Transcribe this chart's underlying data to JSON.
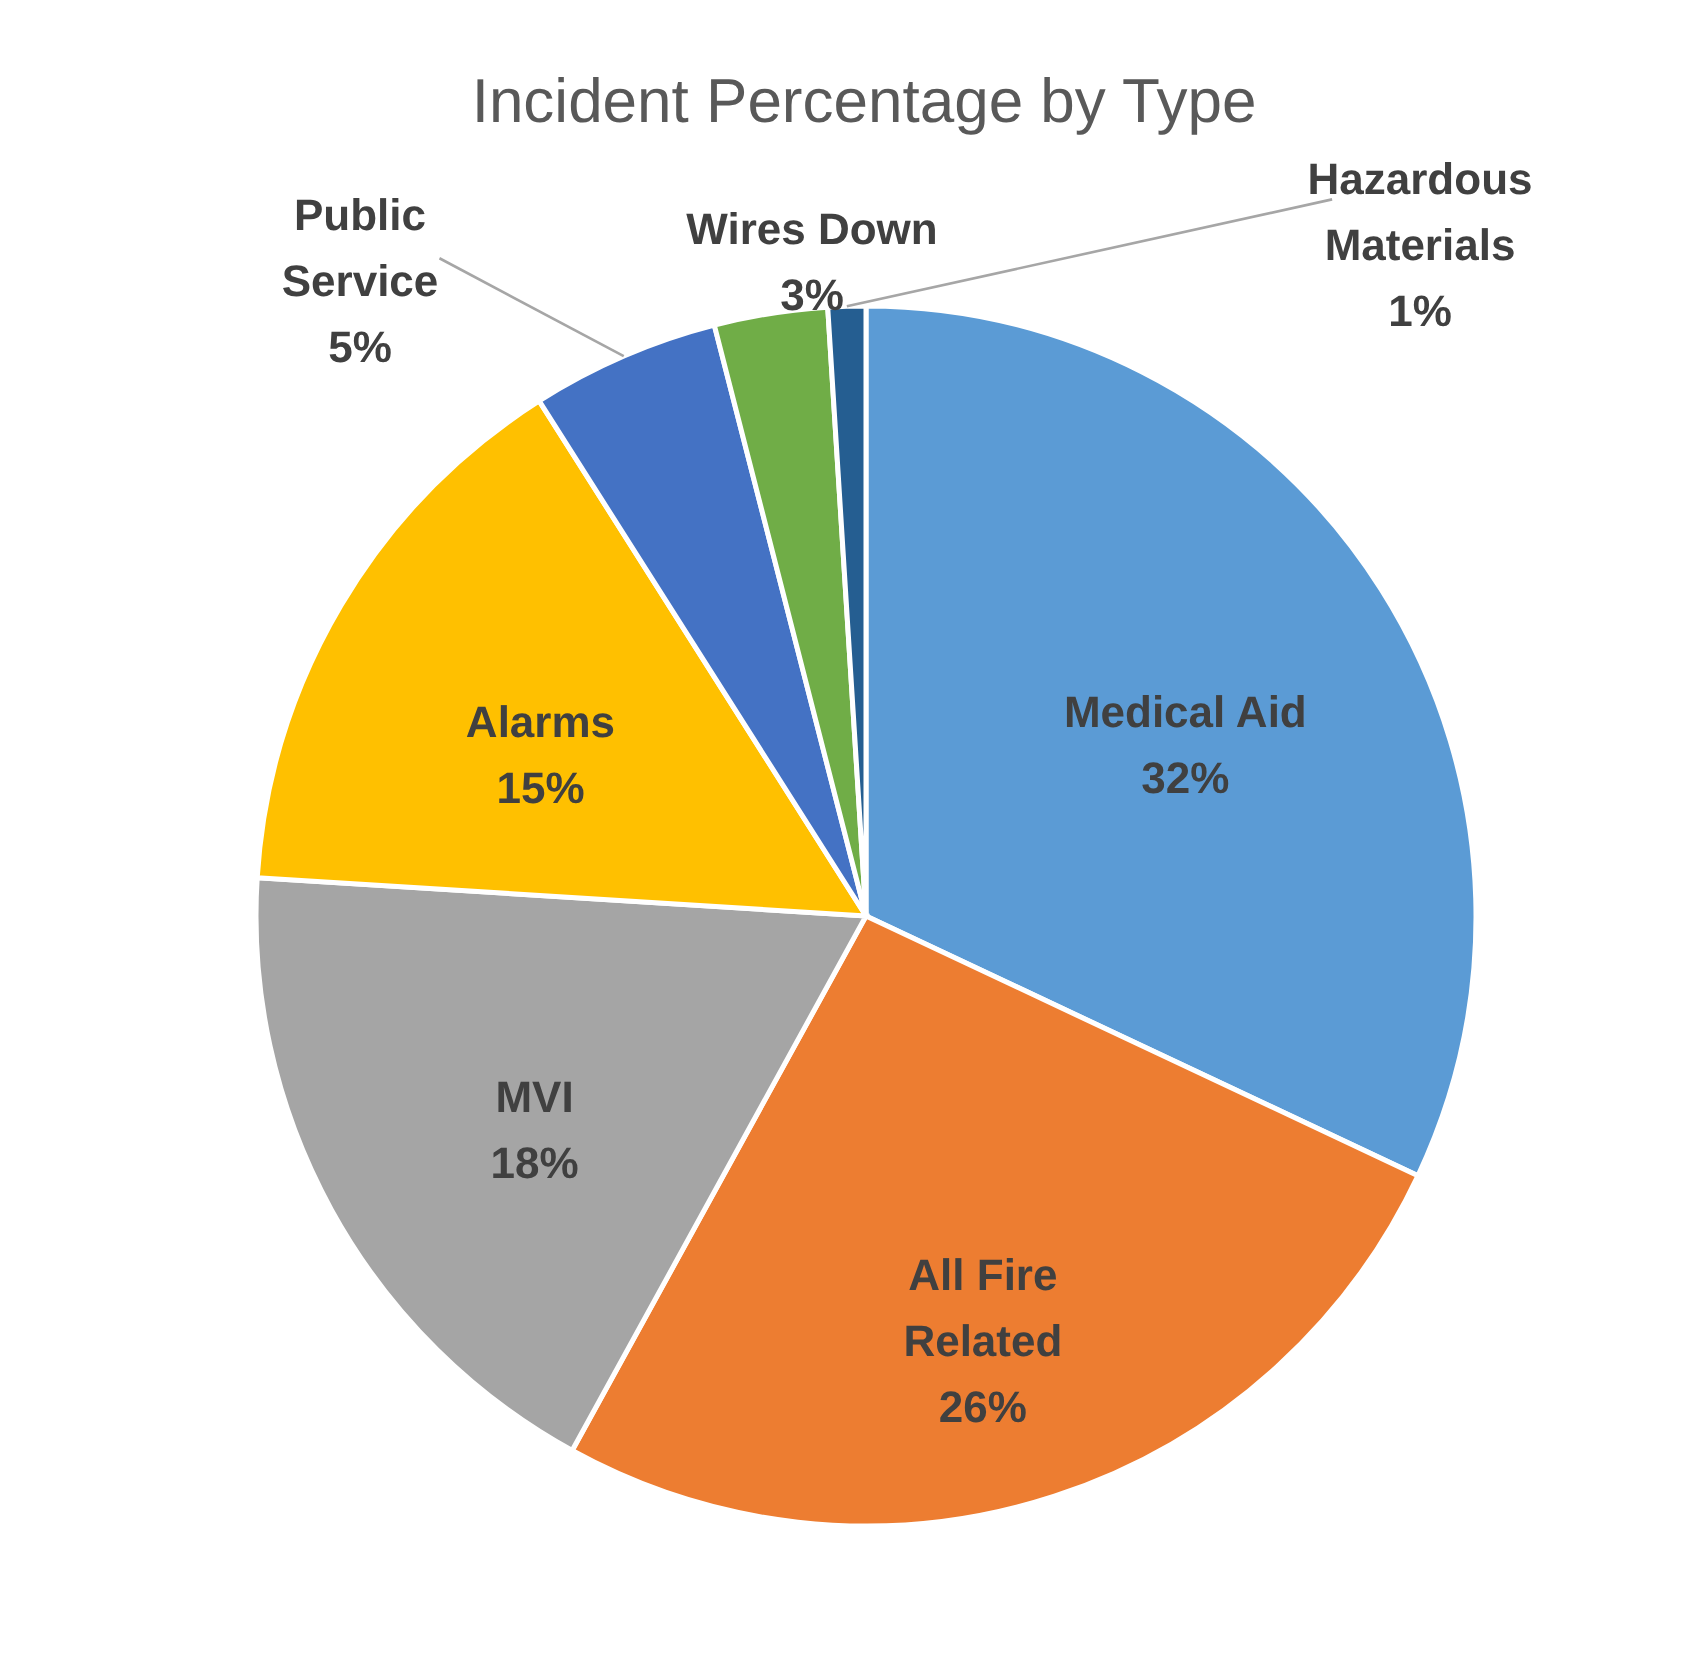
{
  "chart_data": {
    "type": "pie",
    "title": "Incident Percentage by Type",
    "categories": [
      "Medical Aid",
      "All Fire Related",
      "MVI",
      "Alarms",
      "Public Service",
      "Wires Down",
      "Hazardous Materials"
    ],
    "values": [
      32,
      26,
      18,
      15,
      5,
      3,
      1
    ],
    "value_labels": [
      "32%",
      "26%",
      "18%",
      "15%",
      "5%",
      "3%",
      "1%"
    ],
    "colors": [
      "#5b9bd5",
      "#ed7d31",
      "#a5a5a5",
      "#ffc000",
      "#4472c4",
      "#70ad47",
      "#255e91"
    ]
  }
}
